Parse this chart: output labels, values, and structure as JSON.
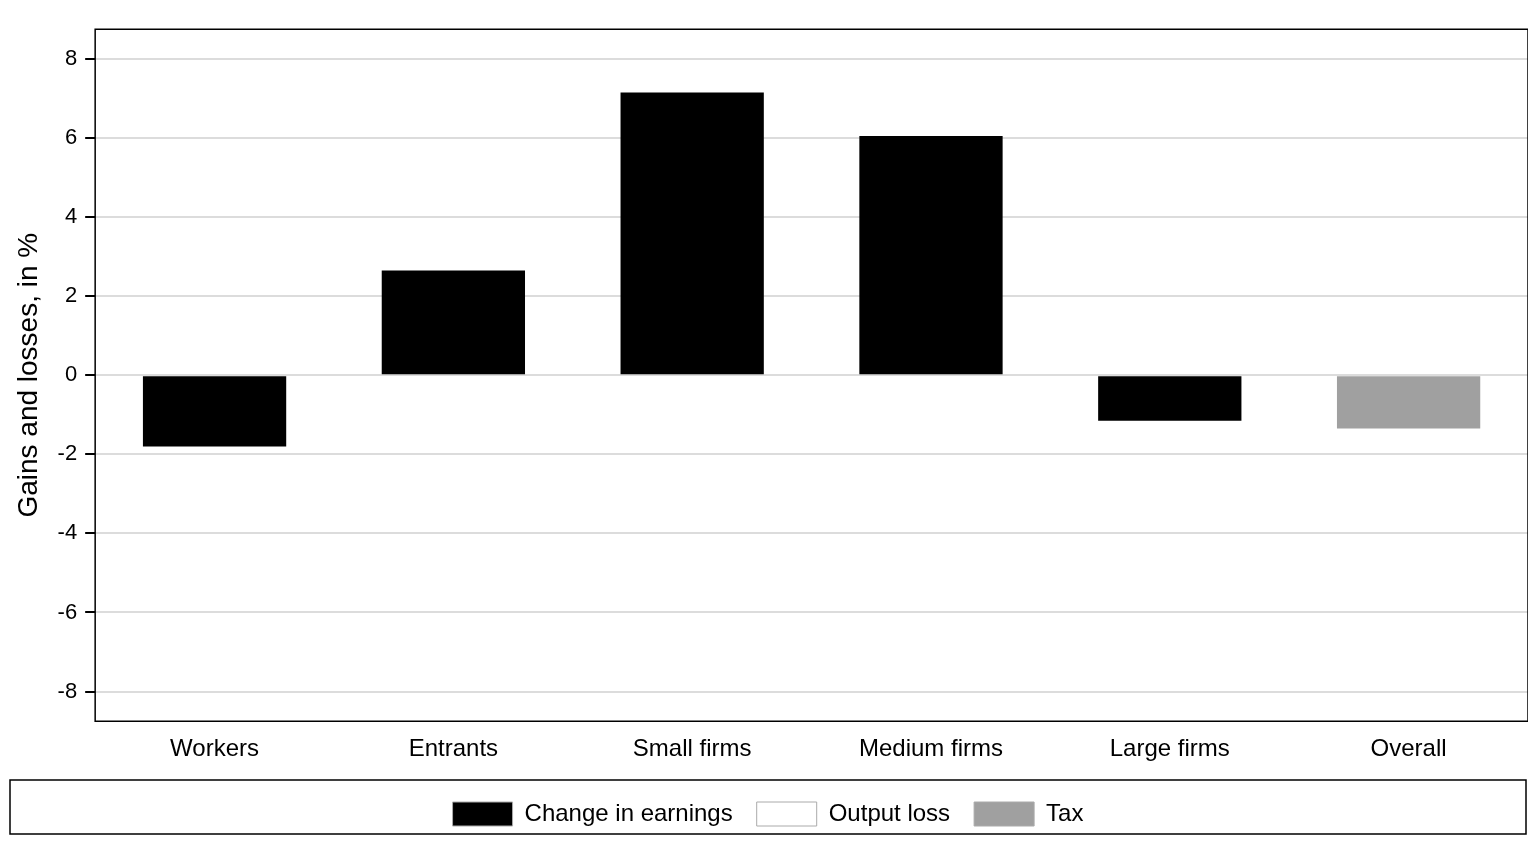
{
  "chart_data": {
    "type": "bar",
    "ylabel": "Gains and losses, in %",
    "categories": [
      "Workers",
      "Entrants",
      "Small firms",
      "Medium firms",
      "Large firms",
      "Overall"
    ],
    "series": [
      {
        "name": "Change in earnings",
        "color": "#000000",
        "values": [
          -1.8,
          2.65,
          7.15,
          6.05,
          -1.15,
          null
        ]
      },
      {
        "name": "Output loss",
        "color": "#ffffff",
        "values": [
          null,
          null,
          null,
          null,
          null,
          null
        ]
      },
      {
        "name": "Tax",
        "color": "#a0a0a0",
        "values": [
          null,
          null,
          null,
          null,
          null,
          -1.35
        ]
      }
    ],
    "ylim": [
      -8.75,
      8.75
    ],
    "yticks": [
      -8,
      -6,
      -4,
      -2,
      0,
      2,
      4,
      6,
      8
    ],
    "grid": "y",
    "legend": "bottom"
  }
}
